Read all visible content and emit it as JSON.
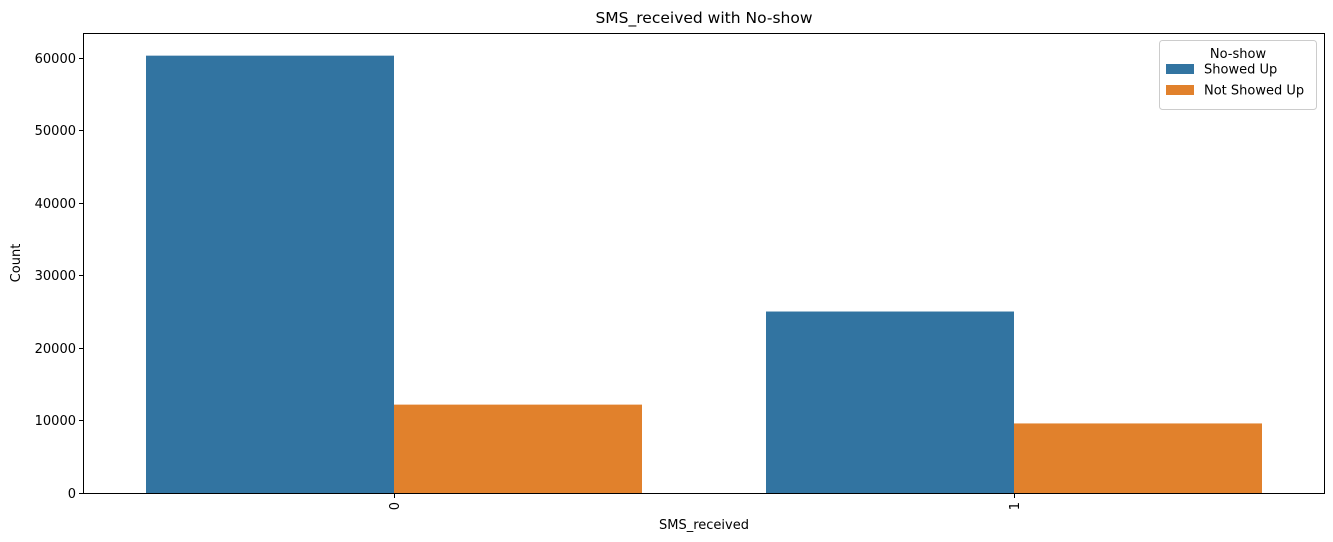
{
  "chart_data": {
    "type": "bar",
    "title": "SMS_received with No-show",
    "xlabel": "SMS_received",
    "ylabel": "Count",
    "categories": [
      "0",
      "1"
    ],
    "series": [
      {
        "name": "Showed Up",
        "color": "#3274a1",
        "values": [
          60290,
          25018
        ]
      },
      {
        "name": "Not Showed Up",
        "color": "#e1812c",
        "values": [
          12183,
          9590
        ]
      }
    ],
    "ylim": [
      0,
      63275
    ],
    "yticks": [
      0,
      10000,
      20000,
      30000,
      40000,
      50000,
      60000
    ],
    "xtick_rotation": "vertical",
    "legend": {
      "title": "No-show",
      "placement": "top-right"
    },
    "grid": false
  }
}
